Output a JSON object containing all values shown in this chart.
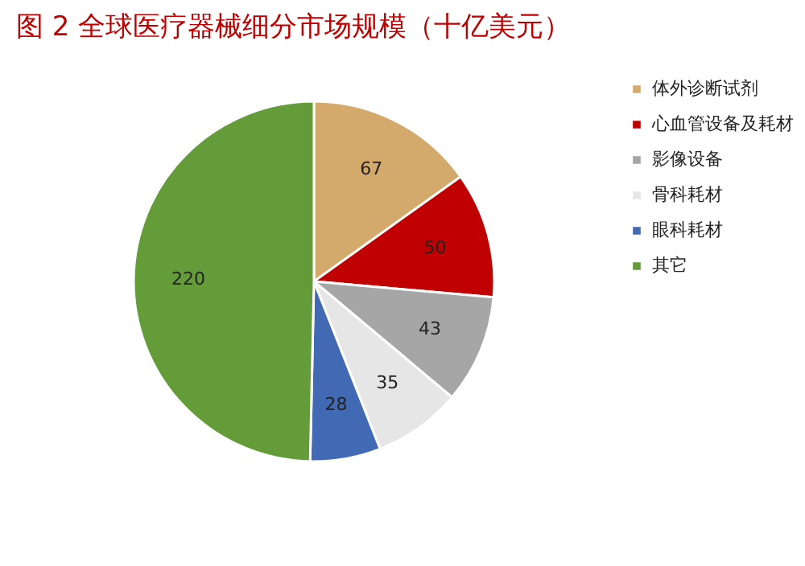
{
  "chart_data": {
    "type": "pie",
    "title": "图 2 全球医疗器械细分市场规模（十亿美元）",
    "categories": [
      "体外诊断试剂",
      "心血管设备及耗材",
      "影像设备",
      "骨科耗材",
      "眼科耗材",
      "其它"
    ],
    "values": [
      67,
      50,
      43,
      35,
      28,
      220
    ],
    "colors": [
      "#d4aa6c",
      "#c00000",
      "#a6a6a6",
      "#e6e6e6",
      "#4269b4",
      "#659c3a"
    ],
    "data_labels": true,
    "legend": "right"
  }
}
